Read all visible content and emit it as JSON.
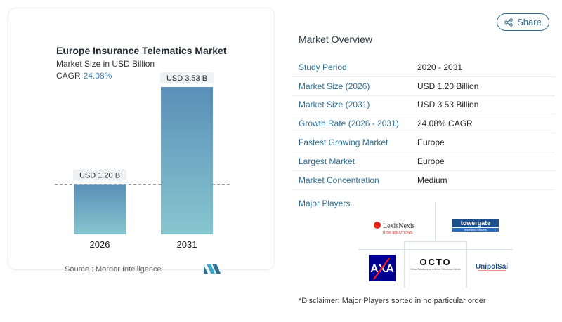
{
  "title": "Europe Insurance Telematics Market",
  "subtitle": "Market Size in USD Billion",
  "cagr_label": "CAGR",
  "cagr_value": "24.08%",
  "source": "Source :  Mordor Intelligence",
  "share_label": "Share",
  "overview": {
    "title": "Market Overview",
    "rows": [
      {
        "key": "Study Period",
        "value": "2020 - 2031"
      },
      {
        "key": "Market Size (2026)",
        "value": "USD 1.20 Billion"
      },
      {
        "key": "Market Size (2031)",
        "value": "USD 3.53 Billion"
      },
      {
        "key": "Growth Rate (2026 - 2031)",
        "value": "24.08% CAGR"
      },
      {
        "key": "Fastest Growing Market",
        "value": "Europe"
      },
      {
        "key": "Largest Market",
        "value": "Europe"
      },
      {
        "key": "Market Concentration",
        "value": "Medium"
      }
    ]
  },
  "players": {
    "title": "Major Players",
    "logos": [
      "LexisNexis",
      "RISK SOLUTIONS",
      "towergate",
      "insurance brokers",
      "AXA",
      "OCTO",
      "Smart Solutions for a Better Connected World",
      "UnipolSai"
    ]
  },
  "disclaimer": "*Disclaimer: Major Players sorted in no particular order",
  "colors": {
    "bar_top": "#5b8fb8",
    "bar_bottom": "#86c6cf",
    "accent": "#2f6f93"
  },
  "chart_data": {
    "type": "bar",
    "title": "Europe Insurance Telematics Market",
    "subtitle": "Market Size in USD Billion",
    "categories": [
      "2026",
      "2031"
    ],
    "values": [
      1.2,
      3.53
    ],
    "data_labels": [
      "USD 1.20 B",
      "USD 3.53 B"
    ],
    "ylim": [
      0,
      3.53
    ],
    "grid": false,
    "reference_line": 1.2
  }
}
